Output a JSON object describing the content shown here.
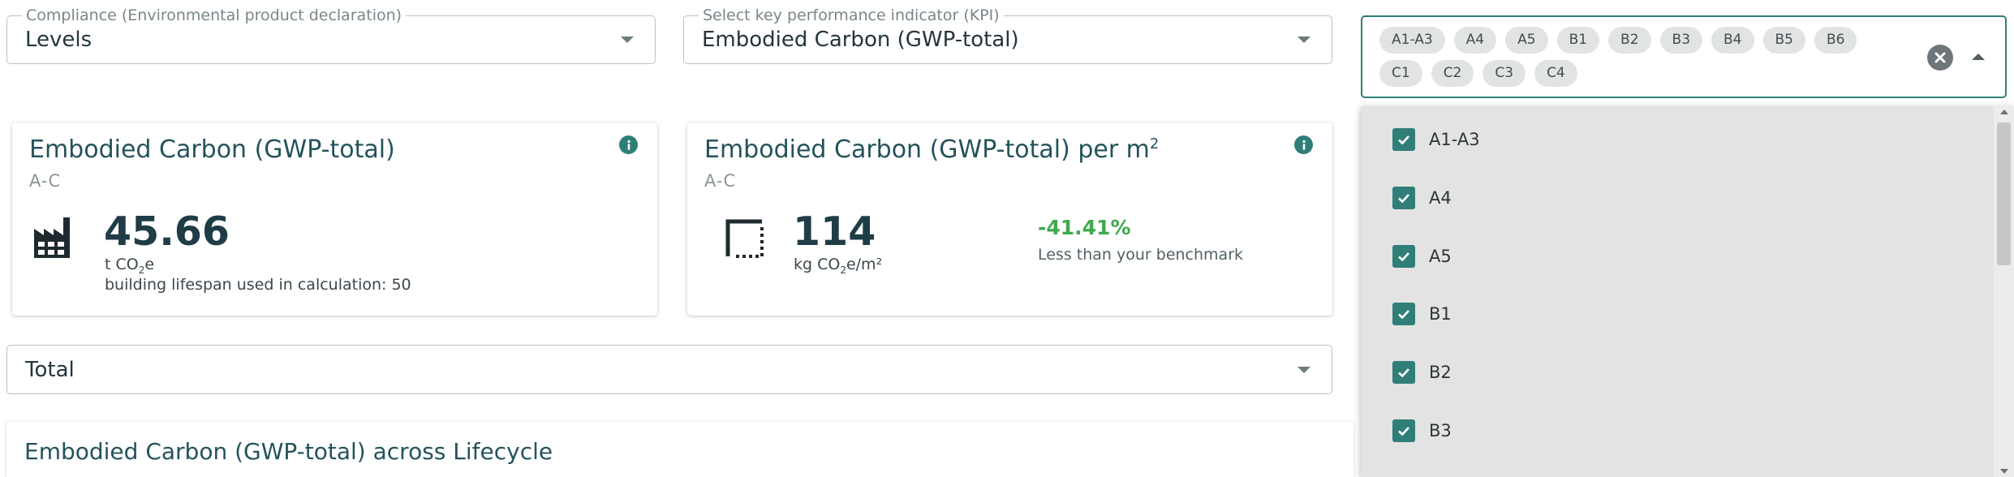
{
  "filters": {
    "compliance": {
      "label": "Compliance (Environmental product declaration)",
      "value": "Levels"
    },
    "kpi": {
      "label": "Select key performance indicator (KPI)",
      "value": "Embodied Carbon (GWP-total)"
    },
    "stages": {
      "chips": [
        "A1-A3",
        "A4",
        "A5",
        "B1",
        "B2",
        "B3",
        "B4",
        "B5",
        "B6",
        "C1",
        "C2",
        "C3",
        "C4"
      ]
    },
    "scope": {
      "value": "Total"
    }
  },
  "card_total": {
    "title": "Embodied Carbon (GWP-total)",
    "subtitle": "A-C",
    "value": "45.66",
    "unit_prefix": "t CO",
    "unit_sub": "2",
    "unit_suffix": "e",
    "lifespan_note": "building lifespan used in calculation: 50",
    "icon": "factory-icon"
  },
  "card_per_m2": {
    "title": "Embodied Carbon (GWP-total) per m",
    "title_sup": "2",
    "subtitle": "A-C",
    "value": "114",
    "unit_prefix": "kg CO",
    "unit_sub": "2",
    "unit_suffix": "e/m²",
    "benchmark_pct": "-41.41%",
    "benchmark_note": "Less than your benchmark",
    "icon": "area-icon"
  },
  "lifecycle": {
    "title": "Embodied Carbon (GWP-total) across Lifecycle"
  },
  "dropdown": {
    "options": [
      "A1-A3",
      "A4",
      "A5",
      "B1",
      "B2",
      "B3"
    ]
  },
  "colors": {
    "accent": "#2f7f78",
    "positive": "#3fa94c",
    "title": "#24535b"
  }
}
